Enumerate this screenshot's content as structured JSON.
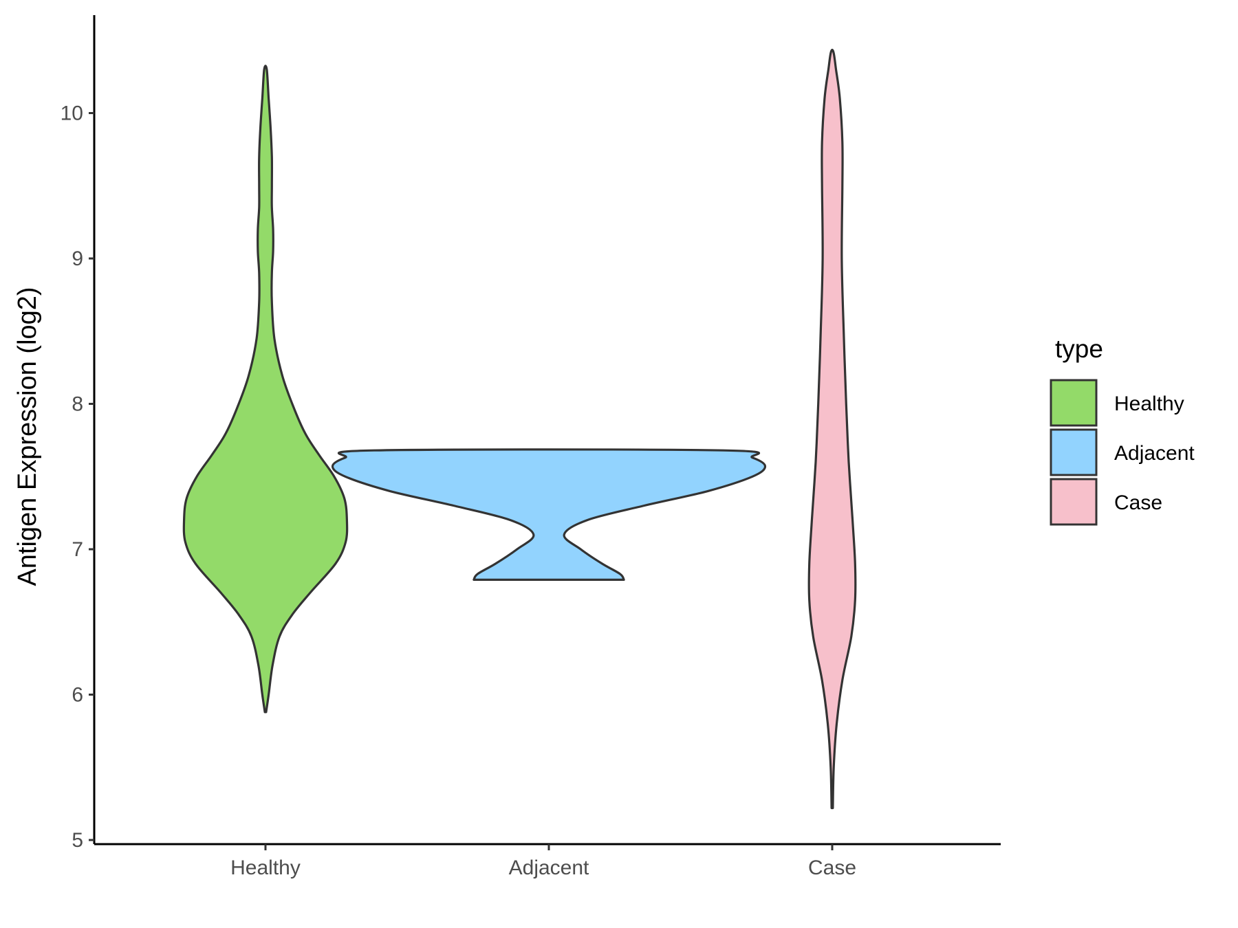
{
  "chart_data": {
    "type": "violin",
    "ylabel": "Antigen Expression (log2)",
    "xlabel": "",
    "ylim": [
      4.95,
      10.7
    ],
    "yticks": [
      5,
      6,
      7,
      8,
      9,
      10
    ],
    "categories": [
      "Healthy",
      "Adjacent",
      "Case"
    ],
    "grid": false,
    "legend": {
      "title": "type",
      "position": "right",
      "entries": [
        "Healthy",
        "Adjacent",
        "Case"
      ]
    },
    "colors": {
      "Healthy": "#93DA69",
      "Adjacent": "#92D3FE",
      "Case": "#F7C0CB",
      "outline": "#333333",
      "axis": "#000000"
    },
    "series": [
      {
        "name": "Healthy",
        "min": 5.88,
        "max": 10.3,
        "profile": [
          [
            5.88,
            0.005
          ],
          [
            6.0,
            0.025
          ],
          [
            6.2,
            0.055
          ],
          [
            6.4,
            0.11
          ],
          [
            6.55,
            0.21
          ],
          [
            6.7,
            0.35
          ],
          [
            6.9,
            0.55
          ],
          [
            7.05,
            0.63
          ],
          [
            7.2,
            0.64
          ],
          [
            7.35,
            0.62
          ],
          [
            7.5,
            0.54
          ],
          [
            7.65,
            0.42
          ],
          [
            7.8,
            0.31
          ],
          [
            8.0,
            0.21
          ],
          [
            8.2,
            0.13
          ],
          [
            8.45,
            0.07
          ],
          [
            8.7,
            0.05
          ],
          [
            8.9,
            0.05
          ],
          [
            9.05,
            0.06
          ],
          [
            9.2,
            0.06
          ],
          [
            9.35,
            0.05
          ],
          [
            9.5,
            0.05
          ],
          [
            9.7,
            0.05
          ],
          [
            9.9,
            0.04
          ],
          [
            10.1,
            0.025
          ],
          [
            10.3,
            0.01
          ]
        ]
      },
      {
        "name": "Adjacent",
        "min": 6.79,
        "max": 7.68,
        "profile": [
          [
            6.79,
            0.59
          ],
          [
            6.83,
            0.56
          ],
          [
            6.9,
            0.42
          ],
          [
            7.0,
            0.25
          ],
          [
            7.1,
            0.12
          ],
          [
            7.2,
            0.3
          ],
          [
            7.3,
            0.75
          ],
          [
            7.4,
            1.25
          ],
          [
            7.5,
            1.6
          ],
          [
            7.57,
            1.7
          ],
          [
            7.63,
            1.6
          ],
          [
            7.68,
            1.37
          ]
        ]
      },
      {
        "name": "Case",
        "min": 5.22,
        "max": 10.42,
        "profile": [
          [
            5.22,
            0.005
          ],
          [
            5.5,
            0.012
          ],
          [
            5.8,
            0.035
          ],
          [
            6.1,
            0.08
          ],
          [
            6.4,
            0.15
          ],
          [
            6.65,
            0.18
          ],
          [
            6.9,
            0.18
          ],
          [
            7.2,
            0.16
          ],
          [
            7.6,
            0.13
          ],
          [
            8.0,
            0.11
          ],
          [
            8.5,
            0.09
          ],
          [
            9.0,
            0.075
          ],
          [
            9.5,
            0.08
          ],
          [
            9.8,
            0.08
          ],
          [
            10.1,
            0.06
          ],
          [
            10.3,
            0.03
          ],
          [
            10.42,
            0.01
          ]
        ]
      }
    ]
  }
}
